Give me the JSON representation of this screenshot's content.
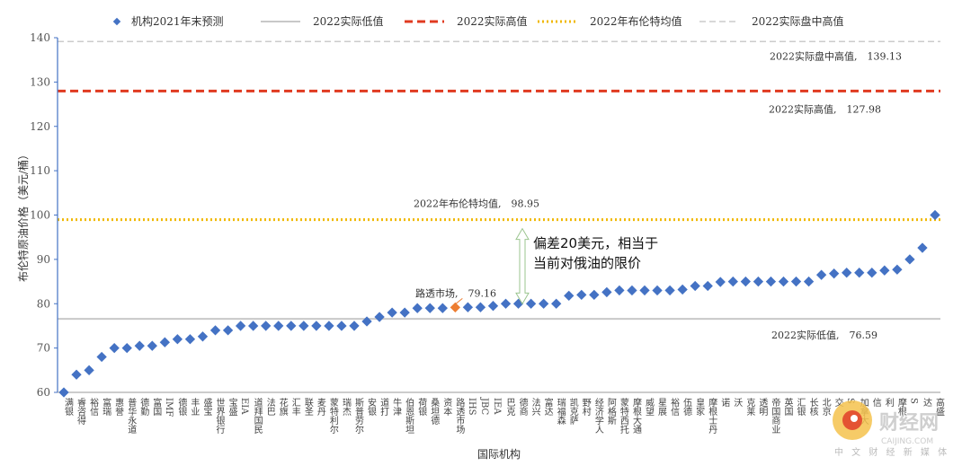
{
  "chart_data": {
    "type": "scatter",
    "xlabel": "国际机构",
    "ylabel": "布伦特原油价格（美元/桶）",
    "ylim": [
      60,
      140
    ],
    "yticks": [
      60,
      70,
      80,
      90,
      100,
      110,
      120,
      130,
      140
    ],
    "grid": false,
    "legend_position": "top",
    "legend": [
      {
        "label": "机构2021年末预测",
        "style": "diamond",
        "color": "#4472c4"
      },
      {
        "label": "2022实际低值",
        "style": "solid",
        "color": "#c8c8c8"
      },
      {
        "label": "2022实际高值",
        "style": "dashed",
        "color": "#e03a20"
      },
      {
        "label": "2022年布伦特均值",
        "style": "dotted",
        "color": "#f0b800"
      },
      {
        "label": "2022实际盘中高值",
        "style": "dashed-light",
        "color": "#cccccc"
      }
    ],
    "reference_lines": [
      {
        "name": "2022实际盘中高值",
        "value": 139.13,
        "label": "2022实际盘中高值,　139.13",
        "color": "#cccccc",
        "style": "dashed-light"
      },
      {
        "name": "2022实际高值",
        "value": 127.98,
        "label": "2022实际高值,　127.98",
        "color": "#e03a20",
        "style": "dashed"
      },
      {
        "name": "2022年布伦特均值",
        "value": 98.95,
        "label": "2022年布伦特均值,　98.95",
        "color": "#f0b800",
        "style": "dotted"
      },
      {
        "name": "2022实际低值",
        "value": 76.59,
        "label": "2022实际低值,　76.59",
        "color": "#c8c8c8",
        "style": "solid"
      }
    ],
    "highlight": {
      "category": "路透市场",
      "label": "路透市场,　79.16",
      "color": "#ed7d31"
    },
    "annotation": [
      "偏差20美元，相当于",
      "当前对俄油的限价"
    ],
    "categories": [
      "满银",
      "睿咨得",
      "裕信",
      "富瑞",
      "惠誉",
      "普华永道",
      "德勤",
      "富国",
      "IMF",
      "德银",
      "丰业",
      "盛宝",
      "世界银行",
      "宝盛",
      "EIA",
      "道拜国民",
      "法巴",
      "花旗",
      "汇丰",
      "联圣",
      "麦丹",
      "蒙特利尔",
      "瑞杰",
      "斯普劳尔",
      "安银",
      "道打",
      "牛津",
      "伯恩斯坦",
      "荷银",
      "桑坦德",
      "资本",
      "路透市场",
      "IHS",
      "JBC",
      "IEA",
      "巴克",
      "德商",
      "法兴",
      "富达",
      "瑞福森",
      "凯克萨",
      "野村",
      "经济学人",
      "阿格斯",
      "蒙特西托",
      "摩根大通",
      "威望",
      "星展",
      "裕信",
      "伍德",
      "皇家",
      "摩根士丹",
      "诺",
      "沃",
      "克莱",
      "透明",
      "帝国商业",
      "英国",
      "汇银",
      "长核",
      "北京",
      "交",
      "S",
      "加拿大",
      "信",
      "利",
      "摩根",
      "S",
      "达",
      "高盛"
    ],
    "values": [
      60,
      64,
      65,
      68,
      70,
      70,
      70.5,
      70.5,
      71.3,
      72,
      72,
      72.6,
      74,
      74,
      75,
      75,
      75,
      75,
      75,
      75,
      75,
      75,
      75,
      75,
      76,
      77,
      78,
      78,
      79,
      79,
      79,
      79.16,
      79.2,
      79.2,
      79.5,
      80,
      80,
      80,
      80,
      80,
      81.8,
      82,
      82,
      82.6,
      83,
      83,
      83,
      83,
      83,
      83.2,
      84,
      84,
      84.9,
      85,
      85,
      85,
      85,
      85,
      85,
      85,
      86.5,
      86.8,
      87,
      87,
      87,
      87.5,
      87.7,
      90,
      92.6,
      100
    ]
  },
  "watermark": {
    "text": "财经网",
    "sub": "中 文 财 经 新 媒 体",
    "site": "CAIJING.COM"
  }
}
